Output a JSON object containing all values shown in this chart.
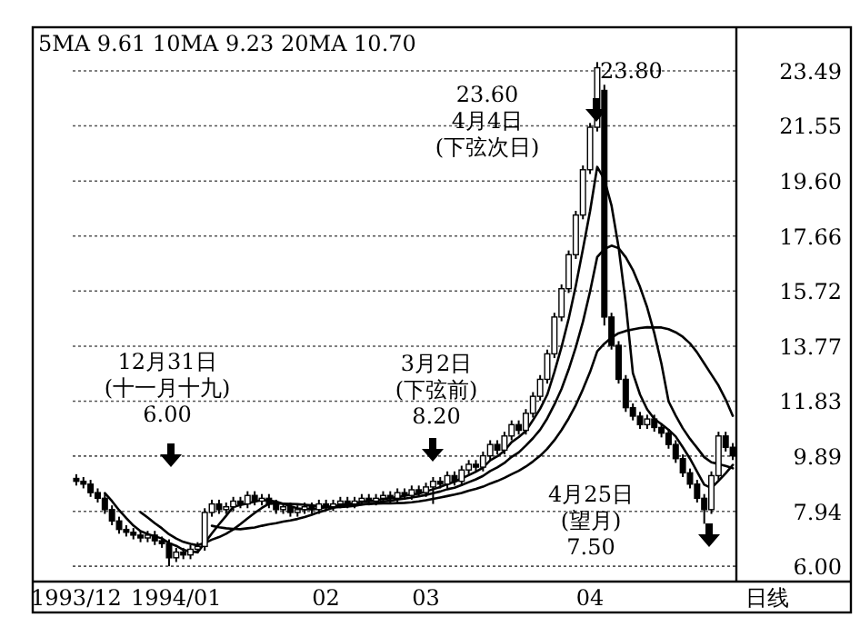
{
  "chart_data": {
    "type": "candlestick",
    "categories": [
      "1993/12",
      null,
      null,
      null,
      null,
      null,
      null,
      null,
      null,
      null,
      null,
      null,
      null,
      null,
      "1994/01",
      null,
      null,
      null,
      null,
      null,
      null,
      null,
      null,
      null,
      null,
      null,
      null,
      null,
      null,
      null,
      null,
      null,
      null,
      null,
      null,
      "02",
      null,
      null,
      null,
      null,
      null,
      null,
      null,
      null,
      null,
      null,
      null,
      null,
      null,
      "03",
      null,
      null,
      null,
      null,
      null,
      null,
      null,
      null,
      null,
      null,
      null,
      null,
      null,
      null,
      null,
      null,
      null,
      null,
      null,
      null,
      null,
      null,
      "04",
      null,
      null,
      null,
      null,
      null,
      null,
      null,
      null,
      null,
      null,
      null,
      null,
      null,
      null,
      null,
      null,
      null,
      null,
      null,
      null
    ],
    "ohlc": [
      [
        9.1,
        9.25,
        8.85,
        9.0
      ],
      [
        9.0,
        9.15,
        8.75,
        8.9
      ],
      [
        8.9,
        9.05,
        8.45,
        8.6
      ],
      [
        8.6,
        8.75,
        8.25,
        8.4
      ],
      [
        8.4,
        8.55,
        7.85,
        8.0
      ],
      [
        8.0,
        8.15,
        7.45,
        7.6
      ],
      [
        7.6,
        7.75,
        7.15,
        7.3
      ],
      [
        7.3,
        7.45,
        7.05,
        7.2
      ],
      [
        7.2,
        7.35,
        6.95,
        7.1
      ],
      [
        7.1,
        7.25,
        6.85,
        7.0
      ],
      [
        7.0,
        7.25,
        6.85,
        7.1
      ],
      [
        7.1,
        7.25,
        6.75,
        6.9
      ],
      [
        6.9,
        7.05,
        6.65,
        6.8
      ],
      [
        6.8,
        6.95,
        6.0,
        6.3
      ],
      [
        6.3,
        6.65,
        6.15,
        6.5
      ],
      [
        6.5,
        6.65,
        6.25,
        6.4
      ],
      [
        6.4,
        6.75,
        6.25,
        6.6
      ],
      [
        6.6,
        6.85,
        6.45,
        6.7
      ],
      [
        6.7,
        8.05,
        6.55,
        7.9
      ],
      [
        7.9,
        8.35,
        7.75,
        8.2
      ],
      [
        8.2,
        8.35,
        7.85,
        8.0
      ],
      [
        8.0,
        8.25,
        7.85,
        8.1
      ],
      [
        8.1,
        8.45,
        7.95,
        8.3
      ],
      [
        8.3,
        8.45,
        8.05,
        8.2
      ],
      [
        8.2,
        8.65,
        8.05,
        8.5
      ],
      [
        8.5,
        8.65,
        8.15,
        8.3
      ],
      [
        8.3,
        8.55,
        8.15,
        8.4
      ],
      [
        8.4,
        8.55,
        8.05,
        8.2
      ],
      [
        8.2,
        8.35,
        7.85,
        8.0
      ],
      [
        8.0,
        8.25,
        7.85,
        8.1
      ],
      [
        8.1,
        8.25,
        7.75,
        7.9
      ],
      [
        7.9,
        8.15,
        7.75,
        8.0
      ],
      [
        8.0,
        8.25,
        7.85,
        8.1
      ],
      [
        8.1,
        8.25,
        7.85,
        8.0
      ],
      [
        8.0,
        8.35,
        7.85,
        8.2
      ],
      [
        8.2,
        8.35,
        7.95,
        8.1
      ],
      [
        8.1,
        8.35,
        7.95,
        8.2
      ],
      [
        8.2,
        8.45,
        8.05,
        8.3
      ],
      [
        8.3,
        8.45,
        8.05,
        8.2
      ],
      [
        8.2,
        8.45,
        8.05,
        8.3
      ],
      [
        8.3,
        8.55,
        8.15,
        8.4
      ],
      [
        8.4,
        8.55,
        8.15,
        8.3
      ],
      [
        8.3,
        8.55,
        8.15,
        8.4
      ],
      [
        8.4,
        8.65,
        8.25,
        8.5
      ],
      [
        8.5,
        8.65,
        8.25,
        8.4
      ],
      [
        8.4,
        8.75,
        8.25,
        8.6
      ],
      [
        8.6,
        8.75,
        8.35,
        8.5
      ],
      [
        8.5,
        8.85,
        8.35,
        8.7
      ],
      [
        8.7,
        8.85,
        8.45,
        8.6
      ],
      [
        8.6,
        8.95,
        8.45,
        8.8
      ],
      [
        8.8,
        9.15,
        8.2,
        9.0
      ],
      [
        9.0,
        9.15,
        8.75,
        8.9
      ],
      [
        8.9,
        9.35,
        8.75,
        9.2
      ],
      [
        9.2,
        9.35,
        8.85,
        9.0
      ],
      [
        9.0,
        9.55,
        8.85,
        9.4
      ],
      [
        9.4,
        9.75,
        9.25,
        9.6
      ],
      [
        9.6,
        9.75,
        9.35,
        9.5
      ],
      [
        9.5,
        10.05,
        9.35,
        9.9
      ],
      [
        9.9,
        10.45,
        9.75,
        10.3
      ],
      [
        10.3,
        10.45,
        9.95,
        10.1
      ],
      [
        10.1,
        10.75,
        9.95,
        10.6
      ],
      [
        10.6,
        11.15,
        10.45,
        11.0
      ],
      [
        11.0,
        11.15,
        10.65,
        10.8
      ],
      [
        10.8,
        11.55,
        10.65,
        11.4
      ],
      [
        11.4,
        12.15,
        11.25,
        12.0
      ],
      [
        12.0,
        12.75,
        11.85,
        12.6
      ],
      [
        12.6,
        13.65,
        12.45,
        13.5
      ],
      [
        13.5,
        14.95,
        13.35,
        14.8
      ],
      [
        14.8,
        15.95,
        14.65,
        15.8
      ],
      [
        15.8,
        17.15,
        15.65,
        17.0
      ],
      [
        17.0,
        18.55,
        16.85,
        18.4
      ],
      [
        18.4,
        20.15,
        18.25,
        20.0
      ],
      [
        20.0,
        21.65,
        19.85,
        21.5
      ],
      [
        21.5,
        23.8,
        21.35,
        23.6
      ],
      [
        22.8,
        23.0,
        14.5,
        14.8
      ],
      [
        14.8,
        14.95,
        13.65,
        13.8
      ],
      [
        13.8,
        13.95,
        12.45,
        12.6
      ],
      [
        12.6,
        12.75,
        11.45,
        11.6
      ],
      [
        11.6,
        11.75,
        11.15,
        11.3
      ],
      [
        11.3,
        11.45,
        10.85,
        11.0
      ],
      [
        11.0,
        11.35,
        10.85,
        11.2
      ],
      [
        11.2,
        11.35,
        10.75,
        10.9
      ],
      [
        10.9,
        11.05,
        10.55,
        10.7
      ],
      [
        10.7,
        10.85,
        10.15,
        10.3
      ],
      [
        10.3,
        10.45,
        9.65,
        9.8
      ],
      [
        9.8,
        9.95,
        9.15,
        9.3
      ],
      [
        9.3,
        9.45,
        8.75,
        8.9
      ],
      [
        8.9,
        9.05,
        8.25,
        8.4
      ],
      [
        8.4,
        8.55,
        7.5,
        8.0
      ],
      [
        8.0,
        9.35,
        7.85,
        9.2
      ],
      [
        9.2,
        10.75,
        9.05,
        10.6
      ],
      [
        10.6,
        10.75,
        10.05,
        10.2
      ],
      [
        10.2,
        10.35,
        9.75,
        9.9
      ]
    ],
    "series": [
      {
        "type": "line",
        "color": "#000000",
        "values": [
          null,
          null,
          null,
          null,
          8.58,
          8.3,
          7.98,
          7.7,
          7.44,
          7.24,
          7.14,
          7.06,
          6.98,
          6.82,
          6.72,
          6.58,
          6.52,
          6.5,
          6.82,
          7.16,
          7.48,
          7.78,
          8.1,
          8.16,
          8.22,
          8.28,
          8.34,
          8.32,
          8.28,
          8.2,
          8.12,
          8.04,
          8.02,
          8.02,
          8.04,
          8.08,
          8.12,
          8.16,
          8.2,
          8.22,
          8.28,
          8.3,
          8.32,
          8.38,
          8.4,
          8.44,
          8.48,
          8.54,
          8.56,
          8.64,
          8.72,
          8.8,
          8.9,
          8.98,
          9.1,
          9.22,
          9.34,
          9.48,
          9.74,
          9.88,
          10.08,
          10.38,
          10.56,
          10.78,
          11.16,
          11.56,
          12.06,
          12.86,
          13.74,
          14.74,
          15.9,
          17.2,
          18.54,
          20.1,
          19.66,
          18.74,
          17.26,
          15.28,
          12.82,
          12.06,
          11.54,
          11.2,
          11.02,
          10.82,
          10.58,
          10.2,
          9.8,
          9.34,
          8.88,
          8.76,
          9.02,
          9.28,
          9.58
        ]
      },
      {
        "type": "line",
        "color": "#000000",
        "values": [
          null,
          null,
          null,
          null,
          null,
          null,
          null,
          null,
          null,
          7.91,
          7.72,
          7.52,
          7.34,
          7.13,
          6.98,
          6.86,
          6.79,
          6.74,
          6.82,
          6.94,
          7.03,
          7.15,
          7.3,
          7.49,
          7.69,
          7.88,
          8.06,
          8.21,
          8.22,
          8.21,
          8.2,
          8.19,
          8.17,
          8.15,
          8.12,
          8.1,
          8.08,
          8.09,
          8.11,
          8.13,
          8.18,
          8.21,
          8.24,
          8.29,
          8.31,
          8.36,
          8.39,
          8.43,
          8.47,
          8.52,
          8.58,
          8.64,
          8.72,
          8.77,
          8.87,
          8.97,
          9.07,
          9.19,
          9.36,
          9.49,
          9.65,
          9.86,
          10.02,
          10.26,
          10.52,
          10.82,
          11.22,
          11.71,
          12.26,
          12.95,
          13.73,
          14.63,
          15.7,
          16.92,
          17.2,
          17.32,
          17.23,
          16.91,
          16.46,
          15.86,
          15.14,
          14.23,
          13.15,
          11.82,
          11.32,
          10.87,
          10.5,
          10.18,
          9.85,
          9.67,
          9.61,
          9.54,
          9.46
        ]
      },
      {
        "type": "line",
        "color": "#000000",
        "values": [
          null,
          null,
          null,
          null,
          null,
          null,
          null,
          null,
          null,
          null,
          null,
          null,
          null,
          null,
          null,
          null,
          null,
          null,
          null,
          7.43,
          7.38,
          7.34,
          7.32,
          7.31,
          7.34,
          7.37,
          7.43,
          7.48,
          7.52,
          7.58,
          7.62,
          7.67,
          7.74,
          7.82,
          7.91,
          7.99,
          8.07,
          8.15,
          8.17,
          8.17,
          8.19,
          8.2,
          8.21,
          8.22,
          8.22,
          8.23,
          8.24,
          8.26,
          8.29,
          8.33,
          8.38,
          8.43,
          8.48,
          8.53,
          8.59,
          8.67,
          8.73,
          8.81,
          8.92,
          9.01,
          9.12,
          9.25,
          9.37,
          9.52,
          9.7,
          9.9,
          10.15,
          10.45,
          10.81,
          11.22,
          11.69,
          12.25,
          12.86,
          13.59,
          13.86,
          14.07,
          14.23,
          14.31,
          14.36,
          14.41,
          14.44,
          14.43,
          14.43,
          14.37,
          14.26,
          14.1,
          13.87,
          13.55,
          13.16,
          12.77,
          12.38,
          11.89,
          11.31
        ]
      }
    ],
    "ylim": [
      5.46,
      25.03
    ],
    "yticks": [
      {
        "value": 6,
        "label": "6.00"
      },
      7.94,
      9.89,
      11.83,
      13.77,
      15.72,
      17.66,
      {
        "value": 19.6,
        "label": "19.60"
      },
      21.55,
      23.49
    ],
    "grid": "y",
    "annotations": [
      "5MA 9.61  10MA 9.23  20MA 10.70",
      "23.80",
      "23.60\n4月4日\n(下弦次日)",
      "12月31日\n(十一月十九)\n6.00",
      "3月2日\n(下弦前)\n8.20",
      "4月25日\n(望月)\n7.50",
      "日线"
    ]
  }
}
